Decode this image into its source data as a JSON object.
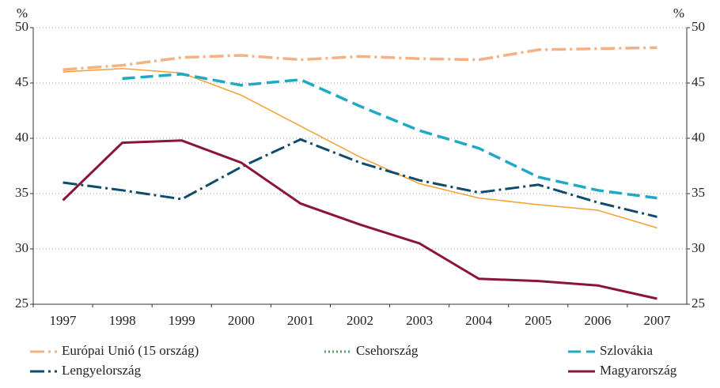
{
  "chart_data": {
    "type": "line",
    "y_unit_left": "%",
    "y_unit_right": "%",
    "categories": [
      "1997",
      "1998",
      "1999",
      "2000",
      "2001",
      "2002",
      "2003",
      "2004",
      "2005",
      "2006",
      "2007"
    ],
    "series": [
      {
        "name": "Európai Unió (15 ország)",
        "color": "#f4b183",
        "dash": "18 5 3 5",
        "width": 3.5,
        "values": [
          46.2,
          46.6,
          47.3,
          47.5,
          47.1,
          47.4,
          47.2,
          47.1,
          48.0,
          48.1,
          48.2
        ]
      },
      {
        "name": "Csehország",
        "color": "#f5a030",
        "dash": "",
        "width": 1.5,
        "legend_color": "#5a9a6a",
        "legend_dash": "2 3",
        "values": [
          46.0,
          46.3,
          45.9,
          43.9,
          41.1,
          38.3,
          35.9,
          34.6,
          34.0,
          33.5,
          31.9
        ]
      },
      {
        "name": "Szlovákia",
        "color": "#1fa9c4",
        "dash": "16 7",
        "width": 3.5,
        "values": [
          null,
          45.4,
          45.8,
          44.8,
          45.3,
          42.9,
          40.7,
          39.1,
          36.5,
          35.3,
          34.6
        ]
      },
      {
        "name": "Lengyelország",
        "color": "#0f4c6b",
        "dash": "18 5 3 5",
        "width": 3,
        "values": [
          36.0,
          35.3,
          34.5,
          37.4,
          39.9,
          37.8,
          36.2,
          35.1,
          35.8,
          34.2,
          32.9
        ]
      },
      {
        "name": "Magyarország",
        "color": "#8b1538",
        "dash": "",
        "width": 3,
        "values": [
          34.4,
          39.6,
          39.8,
          37.8,
          34.1,
          32.2,
          30.5,
          27.3,
          27.1,
          26.7,
          25.5
        ]
      }
    ],
    "ylim": [
      25,
      50
    ],
    "yticks": [
      25,
      30,
      35,
      40,
      45,
      50
    ],
    "grid": true
  }
}
